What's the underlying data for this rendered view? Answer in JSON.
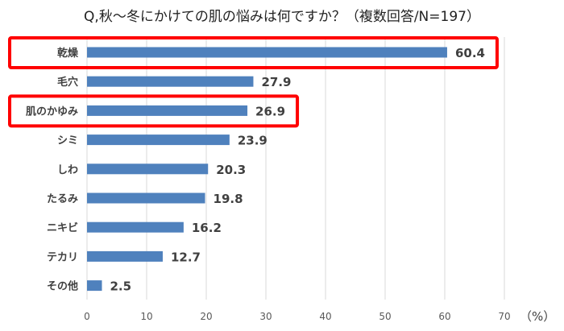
{
  "chart_data": {
    "type": "bar",
    "orientation": "horizontal",
    "title": "Q,秋～冬にかけての肌の悩みは何ですか？（複数回答/N=197）",
    "categories": [
      "乾燥",
      "毛穴",
      "肌のかゆみ",
      "シミ",
      "しわ",
      "たるみ",
      "ニキビ",
      "テカリ",
      "その他"
    ],
    "values": [
      60.4,
      27.9,
      26.9,
      23.9,
      20.3,
      19.8,
      16.2,
      12.7,
      2.5
    ],
    "value_labels": [
      "60.4",
      "27.9",
      "26.9",
      "23.9",
      "20.3",
      "19.8",
      "16.2",
      "12.7",
      "2.5"
    ],
    "xlim": [
      0,
      70
    ],
    "xticks": [
      "0",
      "10",
      "20",
      "30",
      "40",
      "50",
      "60",
      "70"
    ],
    "xunit": "（%）",
    "grid": "vertical",
    "highlighted_categories": [
      "乾燥",
      "肌のかゆみ"
    ],
    "colors": {
      "bar": "#4f81bd",
      "highlight": "#ff0000",
      "grid": "#d9d9d9"
    }
  }
}
